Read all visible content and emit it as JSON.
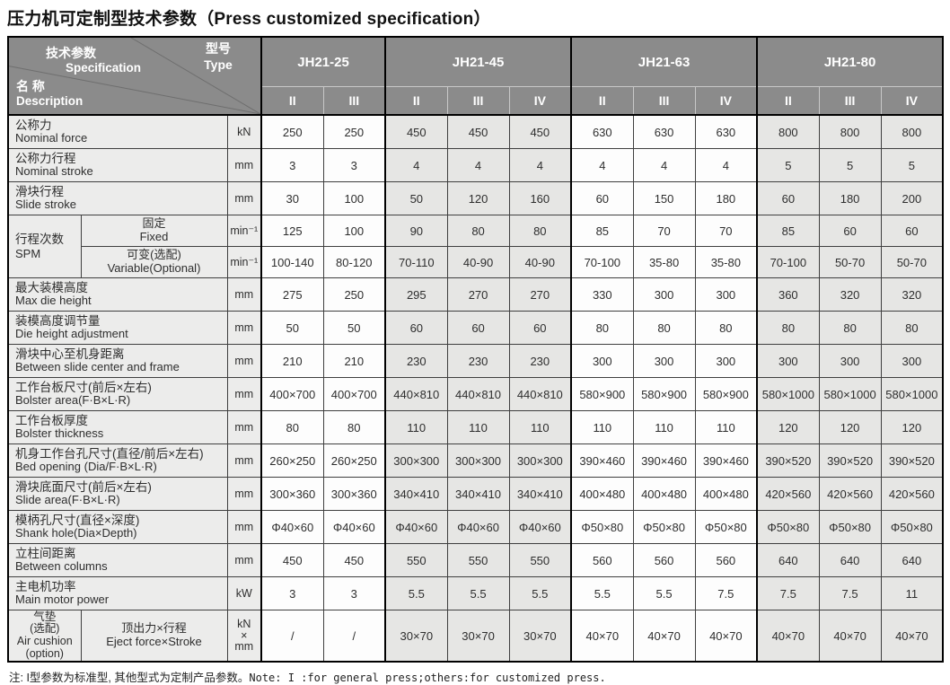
{
  "title": "压力机可定制型技术参数（Press customized specification）",
  "note_zh": "注: I型参数为标准型, 其他型式为定制产品参数。",
  "note_en": "Note: I :for general press;others:for customized press.",
  "table": {
    "corner": {
      "spec_zh": "技术参数",
      "spec_en": "Specification",
      "type_zh": "型号",
      "type_en": "Type",
      "name_zh": "名 称",
      "name_en": "Description"
    },
    "models": [
      {
        "name": "JH21-25",
        "types": [
          "II",
          "III"
        ]
      },
      {
        "name": "JH21-45",
        "types": [
          "II",
          "III",
          "IV"
        ]
      },
      {
        "name": "JH21-63",
        "types": [
          "II",
          "III",
          "IV"
        ]
      },
      {
        "name": "JH21-80",
        "types": [
          "II",
          "III",
          "IV"
        ]
      }
    ],
    "rows": [
      {
        "type": "simple",
        "zh": "公称力",
        "en": "Nominal force",
        "unit": "kN",
        "values": [
          "250",
          "250",
          "450",
          "450",
          "450",
          "630",
          "630",
          "630",
          "800",
          "800",
          "800"
        ]
      },
      {
        "type": "simple",
        "zh": "公称力行程",
        "en": "Nominal stroke",
        "unit": "mm",
        "values": [
          "3",
          "3",
          "4",
          "4",
          "4",
          "4",
          "4",
          "4",
          "5",
          "5",
          "5"
        ]
      },
      {
        "type": "simple",
        "zh": "滑块行程",
        "en": "Slide stroke",
        "unit": "mm",
        "values": [
          "30",
          "100",
          "50",
          "120",
          "160",
          "60",
          "150",
          "180",
          "60",
          "180",
          "200"
        ]
      },
      {
        "type": "group",
        "zh": "行程次数",
        "en": "SPM",
        "subrows": [
          {
            "zh": "固定",
            "en": "Fixed",
            "unit": "min⁻¹",
            "values": [
              "125",
              "100",
              "90",
              "80",
              "80",
              "85",
              "70",
              "70",
              "85",
              "60",
              "60"
            ]
          },
          {
            "zh": "可变(选配)",
            "en": "Variable(Optional)",
            "unit": "min⁻¹",
            "values": [
              "100-140",
              "80-120",
              "70-110",
              "40-90",
              "40-90",
              "70-100",
              "35-80",
              "35-80",
              "70-100",
              "50-70",
              "50-70"
            ]
          }
        ]
      },
      {
        "type": "simple",
        "zh": "最大装模高度",
        "en": "Max die height",
        "unit": "mm",
        "values": [
          "275",
          "250",
          "295",
          "270",
          "270",
          "330",
          "300",
          "300",
          "360",
          "320",
          "320"
        ]
      },
      {
        "type": "simple",
        "zh": "装模高度调节量",
        "en": "Die height adjustment",
        "unit": "mm",
        "values": [
          "50",
          "50",
          "60",
          "60",
          "60",
          "80",
          "80",
          "80",
          "80",
          "80",
          "80"
        ]
      },
      {
        "type": "simple",
        "zh": "滑块中心至机身距离",
        "en": "Between slide center and frame",
        "unit": "mm",
        "values": [
          "210",
          "210",
          "230",
          "230",
          "230",
          "300",
          "300",
          "300",
          "300",
          "300",
          "300"
        ]
      },
      {
        "type": "simple",
        "zh": "工作台板尺寸(前后×左右)",
        "en": "Bolster area(F·B×L·R)",
        "unit": "mm",
        "values": [
          "400×700",
          "400×700",
          "440×810",
          "440×810",
          "440×810",
          "580×900",
          "580×900",
          "580×900",
          "580×1000",
          "580×1000",
          "580×1000"
        ]
      },
      {
        "type": "simple",
        "zh": "工作台板厚度",
        "en": "Bolster thickness",
        "unit": "mm",
        "values": [
          "80",
          "80",
          "110",
          "110",
          "110",
          "110",
          "110",
          "110",
          "120",
          "120",
          "120"
        ]
      },
      {
        "type": "simple",
        "zh": "机身工作台孔尺寸(直径/前后×左右)",
        "en": "Bed opening (Dia/F·B×L·R)",
        "unit": "mm",
        "values": [
          "260×250",
          "260×250",
          "300×300",
          "300×300",
          "300×300",
          "390×460",
          "390×460",
          "390×460",
          "390×520",
          "390×520",
          "390×520"
        ]
      },
      {
        "type": "simple",
        "zh": "滑块底面尺寸(前后×左右)",
        "en": "Slide area(F·B×L·R)",
        "unit": "mm",
        "values": [
          "300×360",
          "300×360",
          "340×410",
          "340×410",
          "340×410",
          "400×480",
          "400×480",
          "400×480",
          "420×560",
          "420×560",
          "420×560"
        ]
      },
      {
        "type": "simple",
        "zh": "模柄孔尺寸(直径×深度)",
        "en": "Shank hole(Dia×Depth)",
        "unit": "mm",
        "values": [
          "Φ40×60",
          "Φ40×60",
          "Φ40×60",
          "Φ40×60",
          "Φ40×60",
          "Φ50×80",
          "Φ50×80",
          "Φ50×80",
          "Φ50×80",
          "Φ50×80",
          "Φ50×80"
        ]
      },
      {
        "type": "simple",
        "zh": "立柱间距离",
        "en": "Between columns",
        "unit": "mm",
        "values": [
          "450",
          "450",
          "550",
          "550",
          "550",
          "560",
          "560",
          "560",
          "640",
          "640",
          "640"
        ]
      },
      {
        "type": "simple",
        "zh": "主电机功率",
        "en": "Main motor power",
        "unit": "kW",
        "values": [
          "3",
          "3",
          "5.5",
          "5.5",
          "5.5",
          "5.5",
          "5.5",
          "7.5",
          "7.5",
          "7.5",
          "11"
        ]
      },
      {
        "type": "split",
        "label_lines": [
          "气垫",
          "(选配)",
          "Air cushion",
          "(option)"
        ],
        "sub_zh": "顶出力×行程",
        "sub_en": "Eject force×Stroke",
        "unit_lines": [
          "kN",
          "×",
          "mm"
        ],
        "values": [
          "/",
          "/",
          "30×70",
          "30×70",
          "30×70",
          "40×70",
          "40×70",
          "40×70",
          "40×70",
          "40×70",
          "40×70"
        ]
      }
    ],
    "colors": {
      "header_bg": "#8b8b8b",
      "label_bg": "#ececeb",
      "shaded_cell_bg": "#e6e6e4",
      "plain_cell_bg": "#fdfdfd",
      "heavy_border": "#000000"
    }
  }
}
